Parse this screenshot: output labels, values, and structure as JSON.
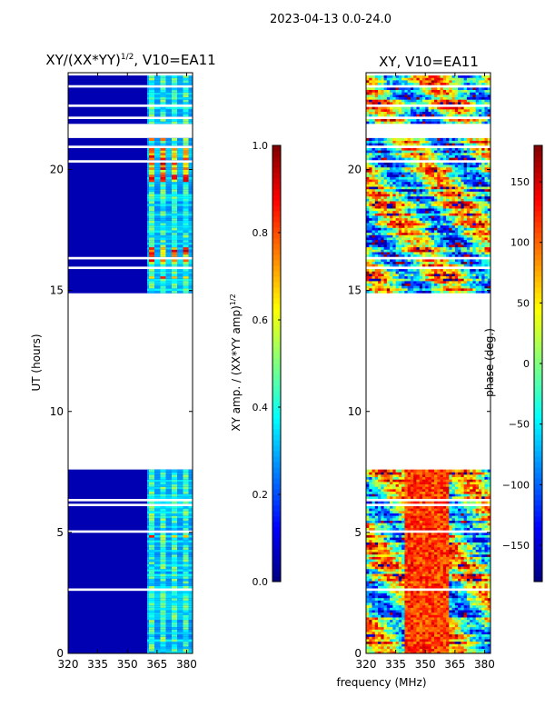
{
  "figure_title": "2023-04-13 0.0-24.0",
  "colors": {
    "jet": [
      "#00007f",
      "#0000ff",
      "#007fff",
      "#00ffff",
      "#7fff7f",
      "#ffff00",
      "#ff7f00",
      "#ff0000",
      "#7f0000"
    ],
    "frame": "#000000",
    "background": "#ffffff"
  },
  "chart_data": [
    {
      "type": "heatmap",
      "panel": "left",
      "title_main": "XY/(XX*YY)",
      "title_sup": "1/2",
      "title_tail": ", V10=EA11",
      "xlabel": "",
      "ylabel": "UT (hours)",
      "xlim": [
        320,
        383
      ],
      "ylim": [
        0,
        24
      ],
      "xticks": [
        "320",
        "335",
        "350",
        "365",
        "380"
      ],
      "xtick_values": [
        320,
        335,
        350,
        365,
        380
      ],
      "yticks": [
        "0",
        "5",
        "10",
        "15",
        "20"
      ],
      "ytick_values": [
        0,
        5,
        10,
        15,
        20
      ],
      "data_blocks_ut": [
        [
          0,
          7.6
        ],
        [
          14.9,
          21.3
        ],
        [
          21.8,
          24.0
        ]
      ],
      "blank_interval_ut": [
        7.6,
        14.9
      ],
      "rfi_band_mhz": [
        360,
        383
      ],
      "background_value": 0.05,
      "band_value_range": [
        0.3,
        0.95
      ],
      "colorbar": {
        "label_main": "XY amp. / (XX*YY amp)",
        "label_sup": "1/2",
        "range": [
          0.0,
          1.0
        ],
        "ticks": [
          "0.0",
          "0.2",
          "0.4",
          "0.6",
          "0.8",
          "1.0"
        ],
        "tick_values": [
          0.0,
          0.2,
          0.4,
          0.6,
          0.8,
          1.0
        ]
      }
    },
    {
      "type": "heatmap",
      "panel": "right",
      "title": "XY, V10=EA11",
      "xlabel": "frequency (MHz)",
      "ylabel": "",
      "xlim": [
        320,
        383
      ],
      "ylim": [
        0,
        24
      ],
      "xticks": [
        "320",
        "335",
        "350",
        "365",
        "380"
      ],
      "xtick_values": [
        320,
        335,
        350,
        365,
        380
      ],
      "yticks": [
        "0",
        "5",
        "10",
        "15",
        "20"
      ],
      "ytick_values": [
        0,
        5,
        10,
        15,
        20
      ],
      "data_blocks_ut": [
        [
          0,
          7.6
        ],
        [
          14.9,
          21.3
        ],
        [
          21.8,
          24.0
        ]
      ],
      "blank_interval_ut": [
        7.6,
        14.9
      ],
      "phase_range_deg": [
        -180,
        180
      ],
      "colorbar": {
        "label": "phase (deg.)",
        "range": [
          -180,
          180
        ],
        "ticks": [
          "−150",
          "−100",
          "−50",
          "0",
          "50",
          "100",
          "150"
        ],
        "tick_values": [
          -150,
          -100,
          -50,
          0,
          50,
          100,
          150
        ]
      }
    }
  ]
}
